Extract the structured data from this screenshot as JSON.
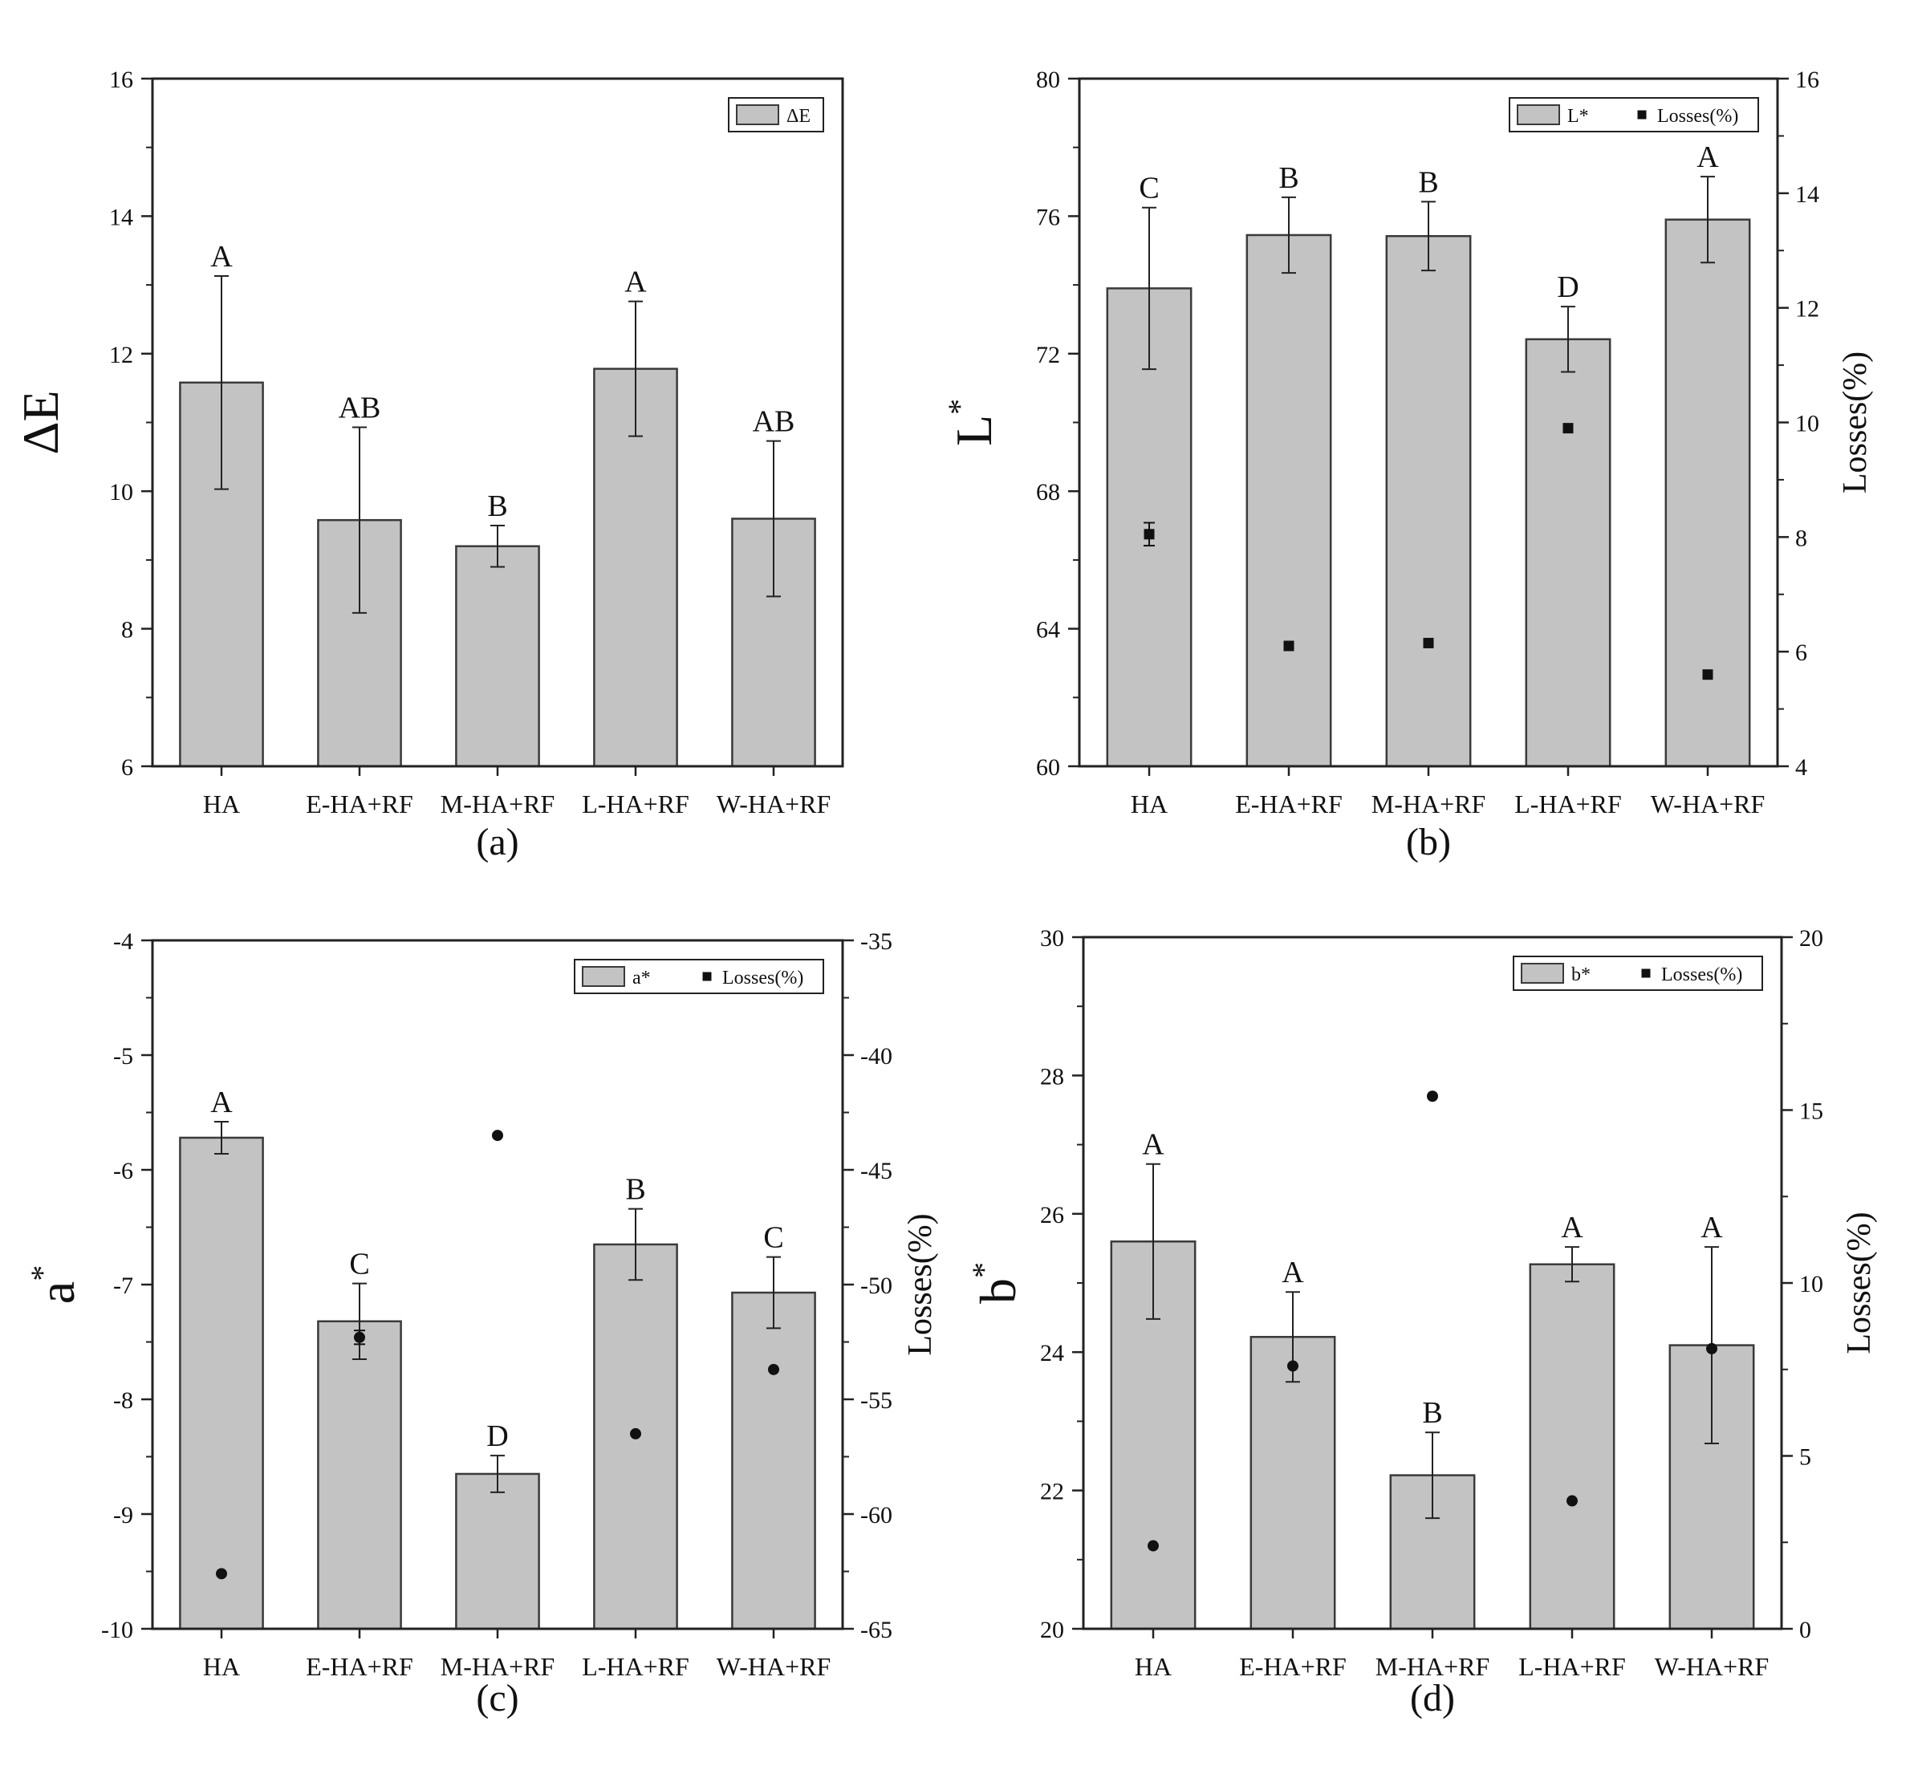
{
  "chart_data": [
    {
      "panel": "(a)",
      "type": "bar",
      "categories": [
        "HA",
        "E-HA+RF",
        "M-HA+RF",
        "L-HA+RF",
        "W-HA+RF"
      ],
      "ylabel": "ΔE",
      "ylim": [
        6,
        16
      ],
      "yticks": [
        6,
        8,
        10,
        12,
        14,
        16
      ],
      "series": [
        {
          "name": "ΔE",
          "values": [
            11.58,
            9.58,
            9.2,
            11.78,
            9.6
          ],
          "errors": [
            1.55,
            1.35,
            0.3,
            0.98,
            1.13
          ],
          "letters": [
            "A",
            "AB",
            "B",
            "A",
            "AB"
          ]
        }
      ],
      "legend": [
        "ΔE"
      ],
      "legend_position": "top-right"
    },
    {
      "panel": "(b)",
      "type": "bar",
      "categories": [
        "HA",
        "E-HA+RF",
        "M-HA+RF",
        "L-HA+RF",
        "W-HA+RF"
      ],
      "ylabel": "L",
      "ylabel_sup": "*",
      "ylim": [
        60,
        80
      ],
      "yticks": [
        60,
        64,
        68,
        72,
        76,
        80
      ],
      "y2label": "Losses(%)",
      "y2lim": [
        4,
        16
      ],
      "y2ticks": [
        4,
        6,
        8,
        10,
        12,
        14,
        16
      ],
      "series": [
        {
          "name": "L*",
          "values": [
            73.9,
            75.45,
            75.42,
            72.42,
            75.9
          ],
          "errors": [
            2.35,
            1.1,
            1.0,
            0.95,
            1.25
          ],
          "letters": [
            "C",
            "B",
            "B",
            "D",
            "A"
          ]
        },
        {
          "name": "Losses(%)",
          "axis": "right",
          "values": [
            8.05,
            6.1,
            6.15,
            9.9,
            5.6
          ],
          "errors": [
            0.2,
            0.05,
            0.05,
            0.05,
            0.05
          ]
        }
      ],
      "legend": [
        "L*",
        "Losses(%)"
      ],
      "legend_position": "top-right"
    },
    {
      "panel": "(c)",
      "type": "bar",
      "categories": [
        "HA",
        "E-HA+RF",
        "M-HA+RF",
        "L-HA+RF",
        "W-HA+RF"
      ],
      "ylabel": "a",
      "ylabel_sup": "*",
      "ylim": [
        -10,
        -4
      ],
      "yticks": [
        -10,
        -9,
        -8,
        -7,
        -6,
        -5,
        -4
      ],
      "y2label": "Losses(%)",
      "y2lim": [
        -65,
        -35
      ],
      "y2ticks": [
        -65,
        -60,
        -55,
        -50,
        -45,
        -40,
        -35
      ],
      "series": [
        {
          "name": "a*",
          "values": [
            -5.72,
            -7.32,
            -8.65,
            -6.65,
            -7.07
          ],
          "errors": [
            0.14,
            0.33,
            0.16,
            0.31,
            0.31
          ],
          "letters": [
            "A",
            "C",
            "D",
            "B",
            "C"
          ]
        },
        {
          "name": "Losses(%)",
          "axis": "right",
          "values": [
            -62.6,
            -52.3,
            -43.5,
            -56.5,
            -53.7
          ],
          "errors": [
            0.1,
            0.3,
            0.1,
            0.1,
            0.1
          ]
        }
      ],
      "legend": [
        "a*",
        "Losses(%)"
      ],
      "legend_position": "top-right"
    },
    {
      "panel": "(d)",
      "type": "bar",
      "categories": [
        "HA",
        "E-HA+RF",
        "M-HA+RF",
        "L-HA+RF",
        "W-HA+RF"
      ],
      "ylabel": "b",
      "ylabel_sup": "*",
      "ylim": [
        20,
        30
      ],
      "yticks": [
        20,
        22,
        24,
        26,
        28,
        30
      ],
      "y2label": "Losses(%)",
      "y2lim": [
        0,
        20
      ],
      "y2ticks": [
        0,
        5,
        10,
        15,
        20
      ],
      "series": [
        {
          "name": "b*",
          "values": [
            25.6,
            24.22,
            22.22,
            25.27,
            24.1
          ],
          "errors": [
            1.12,
            0.65,
            0.62,
            0.25,
            1.42
          ],
          "letters": [
            "A",
            "A",
            "B",
            "A",
            "A"
          ]
        },
        {
          "name": "Losses(%)",
          "axis": "right",
          "values": [
            2.4,
            7.6,
            15.4,
            3.7,
            8.1
          ],
          "errors": [
            0.1,
            0.1,
            0.1,
            0.1,
            0.1
          ]
        }
      ],
      "legend": [
        "b*",
        "Losses(%)"
      ],
      "legend_position": "top-right"
    }
  ],
  "colors": {
    "bar_fill": "#c3c3c3",
    "bar_stroke": "#3a3a3a",
    "axis": "#222222",
    "marker": "#111111"
  }
}
